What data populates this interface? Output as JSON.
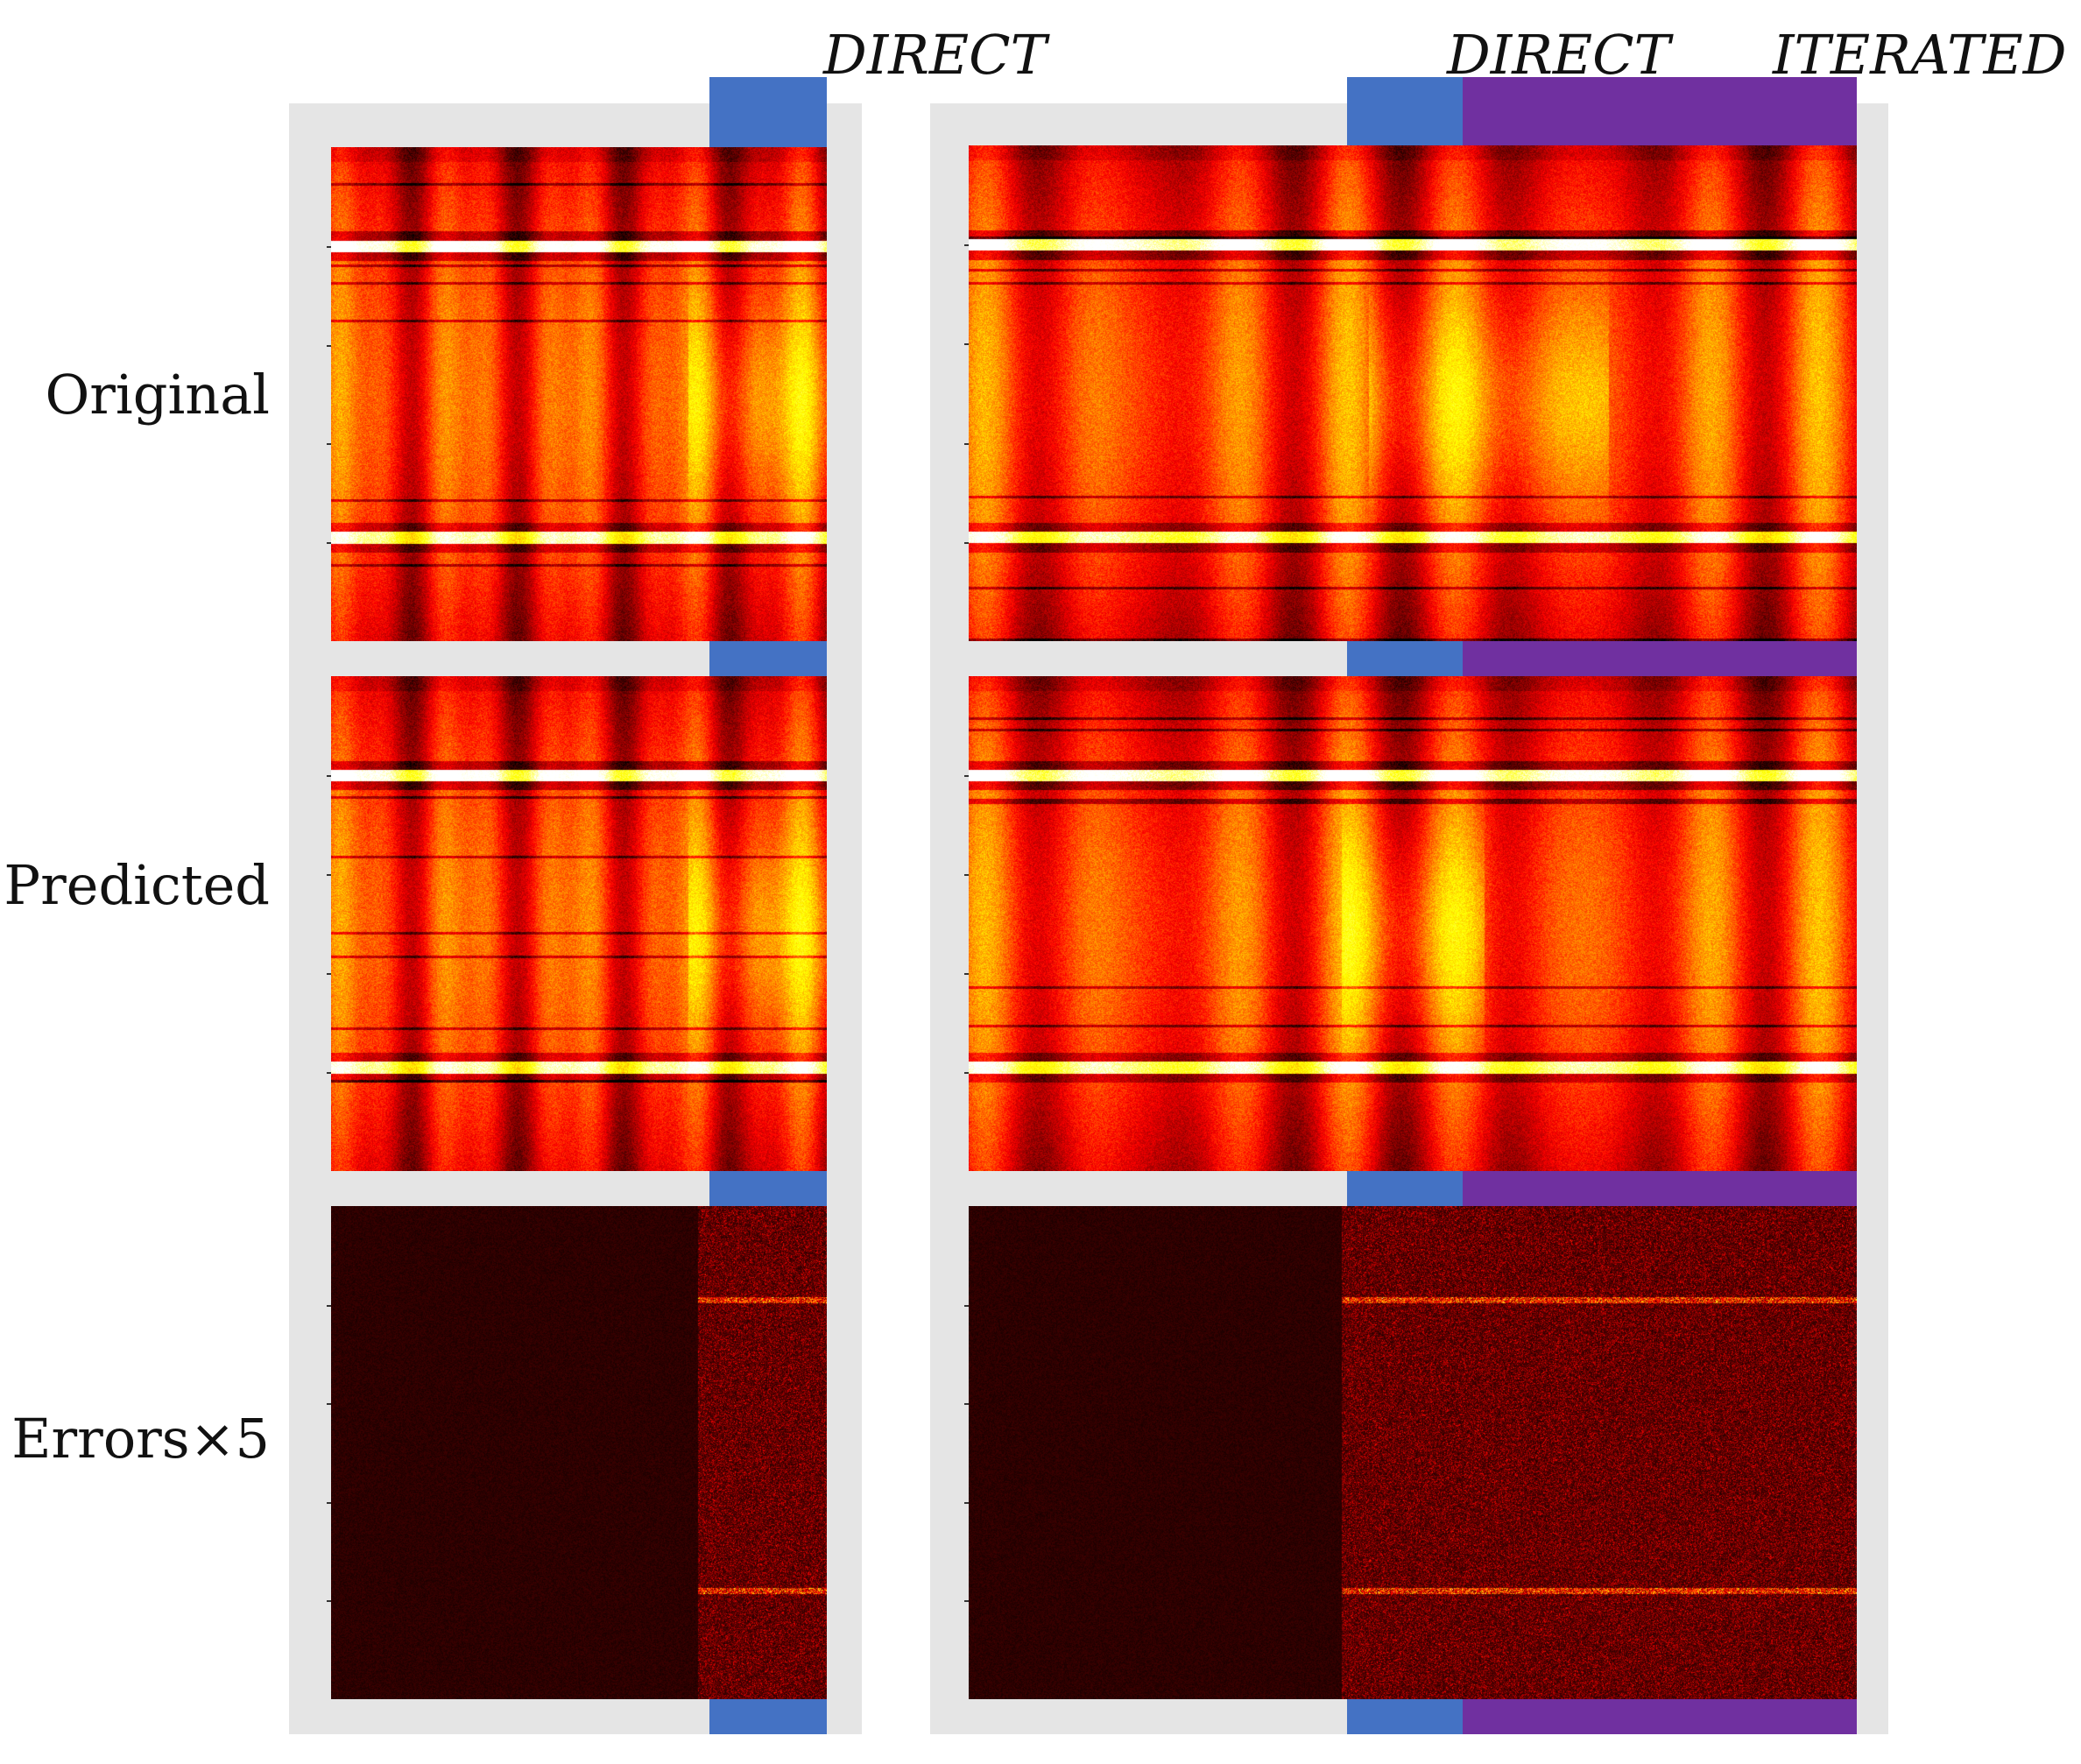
{
  "headers": {
    "left_direct": "DIRECT",
    "right_direct": "DIRECT",
    "right_iterated": "ITERATED"
  },
  "rows": {
    "original": "Original",
    "predicted": "Predicted",
    "errors": "Errors×5"
  },
  "colors": {
    "direct": "#4472c4",
    "iterated": "#7030a0",
    "panel_background": "#e5e5e5",
    "colormap": "hot"
  }
}
